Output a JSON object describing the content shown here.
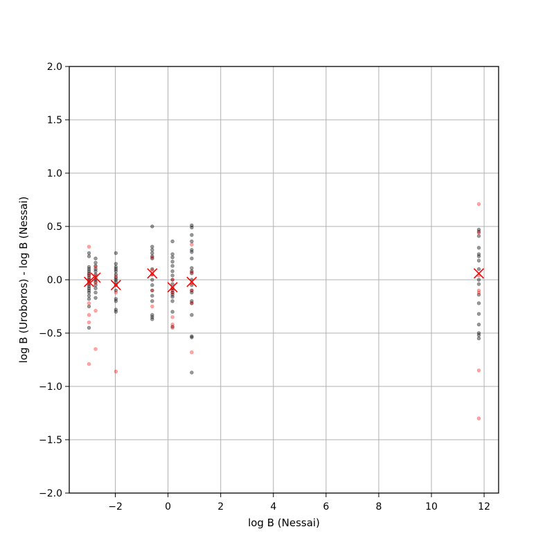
{
  "chart_data": {
    "type": "scatter",
    "title": "",
    "xlabel": "log B (Nessai)",
    "ylabel": "log B (Uroboros) - log B (Nessai)",
    "xlim": [
      -3.75,
      12.55
    ],
    "ylim": [
      -2.0,
      2.0
    ],
    "xticks": [
      -2,
      0,
      2,
      4,
      6,
      8,
      10,
      12
    ],
    "xtick_labels": [
      "−2",
      "0",
      "2",
      "4",
      "6",
      "8",
      "10",
      "12"
    ],
    "yticks": [
      -2.0,
      -1.5,
      -1.0,
      -0.5,
      0.0,
      0.5,
      1.0,
      1.5,
      2.0
    ],
    "ytick_labels": [
      "−2.0",
      "−1.5",
      "−1.0",
      "−0.5",
      "0.0",
      "0.5",
      "1.0",
      "1.5",
      "2.0"
    ],
    "grid": true,
    "series": [
      {
        "color": "#000000",
        "alpha": 0.4,
        "marker": "dot",
        "x": [
          -3.0,
          -3.0,
          -3.0,
          -3.0,
          -3.0,
          -3.0,
          -3.0,
          -3.0,
          -3.0,
          -3.0,
          -3.0,
          -3.0,
          -3.0,
          -3.0,
          -3.0,
          -3.0,
          -3.0,
          -3.0,
          -3.0,
          -2.75,
          -2.75,
          -2.75,
          -2.75,
          -2.75,
          -2.75,
          -2.75,
          -2.75,
          -2.75,
          -2.75,
          -2.75,
          -2.75,
          -2.75,
          -1.98,
          -1.98,
          -1.98,
          -1.98,
          -1.98,
          -1.98,
          -1.98,
          -1.98,
          -1.98,
          -1.98,
          -1.98,
          -1.98,
          -1.98,
          -1.98,
          -1.98,
          -0.6,
          -0.6,
          -0.6,
          -0.6,
          -0.6,
          -0.6,
          -0.6,
          -0.6,
          -0.6,
          -0.6,
          -0.6,
          -0.6,
          -0.6,
          -0.6,
          -0.6,
          -0.6,
          0.17,
          0.17,
          0.17,
          0.17,
          0.17,
          0.17,
          0.17,
          0.17,
          0.17,
          0.17,
          0.17,
          0.17,
          0.17,
          0.17,
          0.17,
          0.17,
          0.17,
          0.9,
          0.9,
          0.9,
          0.9,
          0.9,
          0.9,
          0.9,
          0.9,
          0.9,
          0.9,
          0.9,
          0.9,
          0.9,
          0.9,
          0.9,
          0.9,
          0.9,
          0.9,
          0.9,
          0.9,
          11.8,
          11.8,
          11.8,
          11.8,
          11.8,
          11.8,
          11.8,
          11.8,
          11.8,
          11.8,
          11.8,
          11.8,
          11.8,
          11.8,
          11.8,
          11.8,
          11.8
        ],
        "y": [
          0.25,
          0.22,
          0.12,
          0.1,
          0.08,
          0.06,
          0.04,
          0.02,
          0.0,
          -0.02,
          -0.04,
          -0.06,
          -0.08,
          -0.1,
          -0.12,
          -0.15,
          -0.18,
          -0.25,
          -0.45,
          0.2,
          0.16,
          0.13,
          0.1,
          0.08,
          0.05,
          0.02,
          0.0,
          -0.02,
          -0.05,
          -0.08,
          -0.12,
          -0.17,
          0.25,
          0.15,
          0.12,
          0.1,
          0.08,
          0.05,
          0.02,
          0.0,
          -0.02,
          -0.05,
          -0.1,
          -0.18,
          -0.2,
          -0.28,
          -0.3,
          0.5,
          0.31,
          0.28,
          0.25,
          0.22,
          0.2,
          0.1,
          0.05,
          0.0,
          -0.05,
          -0.1,
          -0.15,
          -0.2,
          -0.33,
          -0.35,
          -0.37,
          0.36,
          0.24,
          0.21,
          0.17,
          0.13,
          0.08,
          0.04,
          0.0,
          -0.04,
          -0.08,
          -0.1,
          -0.12,
          -0.14,
          -0.16,
          -0.2,
          -0.3,
          -0.44,
          0.51,
          0.49,
          0.42,
          0.36,
          0.28,
          0.26,
          0.2,
          0.11,
          0.08,
          0.06,
          0.0,
          -0.05,
          -0.1,
          -0.12,
          -0.2,
          -0.22,
          -0.33,
          -0.53,
          -0.54,
          -0.87,
          0.47,
          0.45,
          0.41,
          0.3,
          0.24,
          0.22,
          0.18,
          0.1,
          0.0,
          -0.04,
          -0.14,
          -0.22,
          -0.32,
          -0.42,
          -0.5,
          -0.52,
          -0.55
        ]
      },
      {
        "color": "#ff0000",
        "alpha": 0.35,
        "marker": "dot",
        "x": [
          -3.0,
          -3.0,
          -3.0,
          -3.0,
          -3.0,
          -3.0,
          -3.0,
          -3.0,
          -2.75,
          -2.75,
          -2.75,
          -2.75,
          -2.75,
          -1.98,
          -1.98,
          -1.98,
          -1.98,
          -0.6,
          -0.6,
          -0.6,
          -0.6,
          -0.6,
          0.17,
          0.17,
          0.17,
          0.17,
          0.17,
          0.17,
          0.9,
          0.9,
          0.9,
          0.9,
          0.9,
          0.9,
          11.8,
          11.8,
          11.8,
          11.8,
          11.8,
          11.8,
          11.8
        ],
        "y": [
          0.31,
          0.05,
          0.0,
          -0.03,
          -0.22,
          -0.33,
          -0.4,
          -0.79,
          0.12,
          0.04,
          -0.03,
          -0.29,
          -0.65,
          0.03,
          -0.05,
          -0.12,
          -0.86,
          0.21,
          0.09,
          0.05,
          -0.1,
          -0.25,
          0.0,
          -0.08,
          -0.12,
          -0.35,
          -0.42,
          -0.45,
          0.33,
          0.07,
          -0.03,
          -0.1,
          -0.22,
          -0.68,
          0.71,
          0.44,
          0.04,
          -0.1,
          -0.12,
          -0.85,
          -1.3
        ]
      },
      {
        "color": "#ff0000",
        "alpha": 1.0,
        "marker": "x",
        "x": [
          -3.0,
          -2.75,
          -1.98,
          -0.6,
          0.17,
          0.9,
          11.8
        ],
        "y": [
          -0.02,
          0.02,
          -0.05,
          0.06,
          -0.07,
          -0.02,
          0.06
        ]
      }
    ]
  }
}
